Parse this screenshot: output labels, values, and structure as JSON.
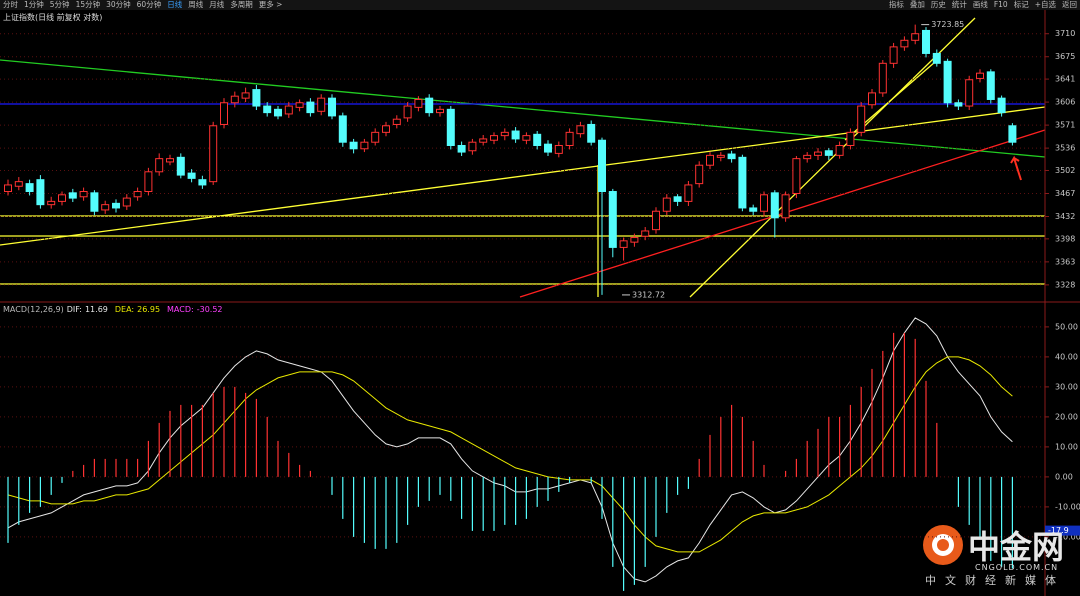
{
  "toolbar": {
    "left": [
      "分时",
      "1分钟",
      "5分钟",
      "15分钟",
      "30分钟",
      "60分钟",
      "日线",
      "周线",
      "月线",
      "多周期",
      "更多 >"
    ],
    "active": 6,
    "right": [
      "指标",
      "叠加",
      "历史",
      "统计",
      "画线",
      "F10",
      "标记",
      "+自选",
      "返回"
    ]
  },
  "chart_data": [
    {
      "type": "candlestick",
      "title": "上证指数(日线 前复权 对数)",
      "up_color": "#ff3232",
      "down_color": "#54fcfc",
      "grid": true,
      "ylim": [
        3305,
        3740
      ],
      "yticks": [
        3710,
        3675,
        3641,
        3606,
        3571,
        3536,
        3502,
        3467,
        3432,
        3398,
        3363,
        3328
      ],
      "open": [
        3470,
        3478,
        3482,
        3488,
        3450,
        3455,
        3468,
        3462,
        3468,
        3442,
        3452,
        3448,
        3462,
        3470,
        3500,
        3515,
        3522,
        3498,
        3488,
        3485,
        3572,
        3605,
        3612,
        3625,
        3600,
        3595,
        3588,
        3598,
        3606,
        3592,
        3612,
        3585,
        3545,
        3535,
        3545,
        3560,
        3572,
        3582,
        3598,
        3612,
        3590,
        3595,
        3540,
        3532,
        3545,
        3548,
        3555,
        3562,
        3548,
        3557,
        3542,
        3528,
        3540,
        3558,
        3572,
        3548,
        3470,
        3385,
        3393,
        3402,
        3412,
        3440,
        3462,
        3455,
        3482,
        3510,
        3522,
        3527,
        3522,
        3445,
        3440,
        3468,
        3430,
        3467,
        3520,
        3525,
        3532,
        3525,
        3540,
        3560,
        3602,
        3620,
        3665,
        3690,
        3700,
        3715,
        3680,
        3668,
        3605,
        3600,
        3642,
        3652,
        3612,
        3570
      ],
      "high": [
        3488,
        3492,
        3488,
        3495,
        3462,
        3470,
        3474,
        3476,
        3472,
        3456,
        3458,
        3466,
        3476,
        3506,
        3528,
        3526,
        3528,
        3504,
        3494,
        3576,
        3612,
        3622,
        3628,
        3632,
        3606,
        3600,
        3606,
        3610,
        3612,
        3618,
        3618,
        3590,
        3550,
        3550,
        3566,
        3576,
        3586,
        3606,
        3615,
        3618,
        3600,
        3600,
        3546,
        3550,
        3556,
        3560,
        3566,
        3568,
        3560,
        3562,
        3548,
        3546,
        3566,
        3576,
        3578,
        3552,
        3474,
        3400,
        3406,
        3416,
        3446,
        3466,
        3466,
        3486,
        3516,
        3530,
        3530,
        3532,
        3526,
        3450,
        3470,
        3472,
        3470,
        3524,
        3530,
        3536,
        3536,
        3546,
        3566,
        3606,
        3626,
        3670,
        3696,
        3706,
        3723.85,
        3720,
        3686,
        3672,
        3610,
        3646,
        3656,
        3656,
        3616,
        3574
      ],
      "low": [
        3464,
        3472,
        3464,
        3444,
        3444,
        3449,
        3454,
        3456,
        3434,
        3436,
        3438,
        3442,
        3456,
        3464,
        3494,
        3510,
        3490,
        3484,
        3474,
        3480,
        3566,
        3598,
        3606,
        3594,
        3584,
        3580,
        3582,
        3592,
        3584,
        3586,
        3580,
        3538,
        3528,
        3530,
        3540,
        3554,
        3566,
        3576,
        3592,
        3584,
        3584,
        3534,
        3524,
        3526,
        3540,
        3542,
        3548,
        3544,
        3542,
        3534,
        3524,
        3522,
        3534,
        3552,
        3540,
        3312.72,
        3370,
        3365,
        3386,
        3396,
        3406,
        3434,
        3448,
        3448,
        3476,
        3504,
        3516,
        3514,
        3440,
        3434,
        3432,
        3400,
        3424,
        3460,
        3514,
        3518,
        3518,
        3520,
        3534,
        3554,
        3596,
        3614,
        3658,
        3684,
        3694,
        3674,
        3660,
        3598,
        3594,
        3594,
        3636,
        3604,
        3584,
        3540
      ],
      "close": [
        3480,
        3485,
        3470,
        3450,
        3455,
        3465,
        3460,
        3470,
        3440,
        3450,
        3445,
        3460,
        3470,
        3500,
        3520,
        3520,
        3495,
        3490,
        3480,
        3570,
        3605,
        3615,
        3620,
        3600,
        3590,
        3585,
        3600,
        3605,
        3590,
        3612,
        3585,
        3545,
        3535,
        3545,
        3560,
        3570,
        3580,
        3600,
        3610,
        3590,
        3595,
        3540,
        3530,
        3545,
        3550,
        3555,
        3560,
        3550,
        3555,
        3540,
        3530,
        3540,
        3560,
        3570,
        3545,
        3470,
        3385,
        3395,
        3400,
        3410,
        3440,
        3460,
        3455,
        3480,
        3510,
        3525,
        3525,
        3520,
        3445,
        3440,
        3465,
        3430,
        3465,
        3520,
        3525,
        3530,
        3525,
        3540,
        3560,
        3600,
        3620,
        3665,
        3690,
        3700,
        3710,
        3680,
        3665,
        3605,
        3600,
        3640,
        3650,
        3610,
        3590,
        3545
      ]
    },
    {
      "type": "macd",
      "title": "MACD(12,26,9)",
      "grid": true,
      "ylim": [
        -39.7,
        57.3
      ],
      "yticks": [
        {
          "value": 50,
          "label": "50.00"
        },
        {
          "value": 40,
          "label": "40.00"
        },
        {
          "value": 30,
          "label": "30.00"
        },
        {
          "value": 20,
          "label": "20.00"
        },
        {
          "value": 10,
          "label": "10.00"
        },
        {
          "value": 0,
          "label": "0.00"
        },
        {
          "value": -10,
          "label": "-10.00"
        },
        {
          "value": -20,
          "label": "-20.00"
        }
      ],
      "marker": -17.9,
      "series": [
        {
          "name": "DIF:",
          "color": "#e6e6e6",
          "values": [
            -17,
            -15,
            -14,
            -13,
            -12,
            -10,
            -8,
            -6,
            -5,
            -4,
            -3,
            -3,
            -2,
            2,
            8,
            13,
            17,
            20,
            23,
            28,
            33,
            37,
            40,
            42,
            41,
            39,
            38,
            37,
            36,
            35,
            32,
            27,
            22,
            18,
            14,
            11,
            10,
            11,
            13,
            13,
            13,
            11,
            6,
            2,
            0,
            -2,
            -3,
            -5,
            -5,
            -4,
            -4,
            -3,
            -2,
            -1,
            -2,
            -10,
            -22,
            -30,
            -34,
            -35,
            -33,
            -30,
            -28,
            -27,
            -22,
            -16,
            -11,
            -6,
            -5,
            -7,
            -10,
            -12,
            -11,
            -8,
            -4,
            0,
            4,
            7,
            12,
            18,
            25,
            33,
            42,
            48,
            53,
            51,
            47,
            40,
            35,
            31,
            27,
            20,
            15,
            11.69
          ]
        },
        {
          "name": "DEA:",
          "color": "#e8e800",
          "values": [
            -6,
            -7,
            -8,
            -8,
            -9,
            -9,
            -9,
            -8,
            -8,
            -7,
            -6,
            -6,
            -5,
            -4,
            -1,
            2,
            5,
            8,
            11,
            14,
            18,
            22,
            26,
            29,
            31,
            33,
            34,
            35,
            35,
            35,
            35,
            34,
            32,
            29,
            26,
            23,
            21,
            19,
            18,
            17,
            16,
            15,
            13,
            11,
            9,
            7,
            5,
            3,
            2,
            1,
            0,
            -0.5,
            -1,
            -1,
            -1,
            -3,
            -7,
            -11,
            -16,
            -20,
            -23,
            -24,
            -25,
            -25,
            -25,
            -23,
            -21,
            -18,
            -15,
            -13,
            -12,
            -12,
            -12,
            -11,
            -10,
            -8,
            -6,
            -3,
            0,
            3,
            7,
            12,
            18,
            24,
            30,
            35,
            38,
            40,
            40,
            39,
            37,
            34,
            30,
            26.95
          ]
        },
        {
          "name": "MACD:",
          "color": "#ff40ff",
          "up_color": "#ff3232",
          "down_color": "#54fcfc",
          "values": [
            -22,
            -16,
            -12,
            -10,
            -6,
            -2,
            2,
            4,
            6,
            6,
            6,
            6,
            6,
            12,
            18,
            22,
            24,
            24,
            24,
            28,
            30,
            30,
            28,
            26,
            20,
            12,
            8,
            4,
            2,
            0,
            -6,
            -14,
            -20,
            -22,
            -24,
            -24,
            -22,
            -16,
            -10,
            -8,
            -6,
            -8,
            -14,
            -18,
            -18,
            -18,
            -16,
            -16,
            -14,
            -10,
            -8,
            -5,
            -2,
            0,
            -2,
            -14,
            -30,
            -38,
            -36,
            -30,
            -20,
            -12,
            -6,
            -4,
            6,
            14,
            20,
            24,
            20,
            12,
            4,
            0,
            2,
            6,
            12,
            16,
            20,
            20,
            24,
            30,
            36,
            42,
            48,
            48,
            46,
            32,
            18,
            0,
            -10,
            -16,
            -20,
            -28,
            -30,
            -30.52
          ]
        }
      ]
    }
  ],
  "watermark": {
    "brand": "中金网",
    "site": "CNGOLD.COM.CN",
    "slogan": "中文财经新媒体"
  }
}
